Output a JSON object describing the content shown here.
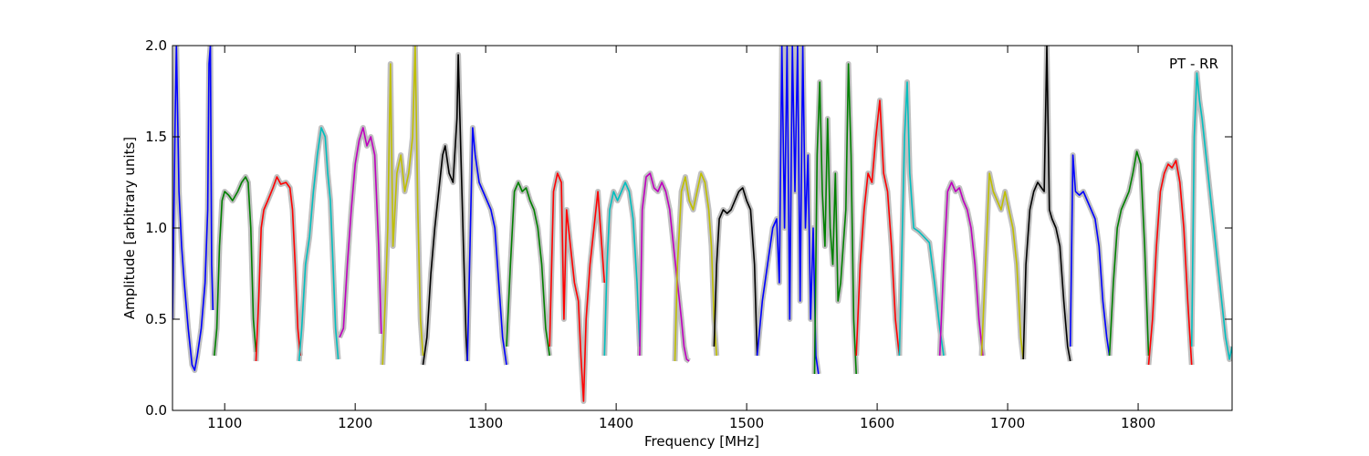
{
  "chart_data": {
    "type": "line",
    "title": "",
    "xlabel": "Frequency [MHz]",
    "ylabel": "Amplitude [arbitrary units]",
    "annotation": "PT - RR",
    "xlim": [
      1060,
      1872
    ],
    "ylim": [
      0.0,
      2.0
    ],
    "x_ticks": [
      "1100",
      "1200",
      "1300",
      "1400",
      "1500",
      "1600",
      "1700",
      "1800"
    ],
    "y_ticks": [
      "0.0",
      "0.5",
      "1.0",
      "1.5",
      "2.0"
    ],
    "grid": false,
    "legend": "none",
    "background_color": "#c0c0c0",
    "series": [
      {
        "color": "#0000ff",
        "x": [
          1060,
          1062,
          1063,
          1065,
          1067,
          1069,
          1072,
          1075,
          1077,
          1079,
          1082,
          1085,
          1087,
          1088,
          1089,
          1090,
          1091
        ],
        "y": [
          0.5,
          1.6,
          2.0,
          1.2,
          0.9,
          0.7,
          0.45,
          0.25,
          0.22,
          0.3,
          0.45,
          0.7,
          1.1,
          1.9,
          2.0,
          0.8,
          0.55
        ]
      },
      {
        "color": "#008000",
        "x": [
          1092,
          1094,
          1096,
          1098,
          1100,
          1103,
          1106,
          1110,
          1113,
          1116,
          1118,
          1120,
          1122,
          1124
        ],
        "y": [
          0.3,
          0.45,
          0.9,
          1.15,
          1.2,
          1.18,
          1.15,
          1.2,
          1.25,
          1.28,
          1.25,
          1.0,
          0.5,
          0.32
        ]
      },
      {
        "color": "#ff0000",
        "x": [
          1124,
          1126,
          1128,
          1130,
          1133,
          1137,
          1140,
          1143,
          1147,
          1150,
          1152,
          1154,
          1156,
          1158
        ],
        "y": [
          0.27,
          0.6,
          1.0,
          1.1,
          1.15,
          1.22,
          1.28,
          1.24,
          1.25,
          1.22,
          1.1,
          0.8,
          0.45,
          0.3
        ]
      },
      {
        "color": "#00bfbf",
        "x": [
          1157,
          1159,
          1162,
          1165,
          1168,
          1171,
          1174,
          1177,
          1179,
          1181,
          1183,
          1185,
          1187
        ],
        "y": [
          0.27,
          0.45,
          0.8,
          0.95,
          1.2,
          1.4,
          1.55,
          1.5,
          1.3,
          1.15,
          0.8,
          0.45,
          0.28
        ]
      },
      {
        "color": "#bf00bf",
        "x": [
          1188,
          1191,
          1194,
          1197,
          1200,
          1203,
          1206,
          1209,
          1212,
          1215,
          1218,
          1220
        ],
        "y": [
          0.4,
          0.45,
          0.8,
          1.1,
          1.35,
          1.48,
          1.55,
          1.45,
          1.5,
          1.4,
          0.9,
          0.42
        ]
      },
      {
        "color": "#bfbf00",
        "x": [
          1221,
          1223,
          1225,
          1227,
          1229,
          1232,
          1235,
          1238,
          1241,
          1244,
          1246,
          1248,
          1250,
          1252
        ],
        "y": [
          0.25,
          0.6,
          1.0,
          1.9,
          0.9,
          1.3,
          1.4,
          1.2,
          1.3,
          1.5,
          2.0,
          1.1,
          0.5,
          0.3
        ]
      },
      {
        "color": "#000000",
        "x": [
          1252,
          1255,
          1258,
          1261,
          1264,
          1267,
          1269,
          1272,
          1275,
          1278,
          1279,
          1281,
          1283,
          1285,
          1286
        ],
        "y": [
          0.25,
          0.4,
          0.75,
          1.0,
          1.2,
          1.4,
          1.45,
          1.3,
          1.25,
          1.6,
          1.95,
          1.4,
          0.9,
          0.4,
          0.27
        ]
      },
      {
        "color": "#0000ff",
        "x": [
          1286,
          1288,
          1290,
          1292,
          1295,
          1298,
          1301,
          1304,
          1307,
          1310,
          1313,
          1316
        ],
        "y": [
          0.27,
          0.9,
          1.55,
          1.4,
          1.25,
          1.2,
          1.15,
          1.1,
          1.0,
          0.7,
          0.4,
          0.25
        ]
      },
      {
        "color": "#008000",
        "x": [
          1316,
          1319,
          1322,
          1325,
          1328,
          1331,
          1334,
          1337,
          1340,
          1343,
          1346,
          1349
        ],
        "y": [
          0.35,
          0.8,
          1.2,
          1.25,
          1.2,
          1.22,
          1.15,
          1.1,
          1.0,
          0.8,
          0.45,
          0.3
        ]
      },
      {
        "color": "#ff0000",
        "x": [
          1349,
          1352,
          1355,
          1358,
          1360,
          1362,
          1365,
          1368,
          1371,
          1373,
          1375,
          1377,
          1380,
          1383,
          1386,
          1389,
          1391
        ],
        "y": [
          0.35,
          1.2,
          1.3,
          1.25,
          0.5,
          1.1,
          0.9,
          0.7,
          0.6,
          0.3,
          0.05,
          0.5,
          0.8,
          1.0,
          1.2,
          0.9,
          0.7
        ]
      },
      {
        "color": "#00bfbf",
        "x": [
          1391,
          1393,
          1395,
          1398,
          1401,
          1404,
          1407,
          1410,
          1413,
          1416,
          1418
        ],
        "y": [
          0.3,
          0.8,
          1.1,
          1.2,
          1.15,
          1.2,
          1.25,
          1.2,
          1.05,
          0.7,
          0.35
        ]
      },
      {
        "color": "#bf00bf",
        "x": [
          1418,
          1420,
          1423,
          1426,
          1429,
          1432,
          1435,
          1438,
          1441,
          1444,
          1447,
          1450,
          1452,
          1454,
          1456
        ],
        "y": [
          0.3,
          1.1,
          1.28,
          1.3,
          1.22,
          1.2,
          1.25,
          1.2,
          1.1,
          0.9,
          0.7,
          0.5,
          0.35,
          0.28,
          0.27
        ]
      },
      {
        "color": "#bfbf00",
        "x": [
          1445,
          1447,
          1450,
          1453,
          1456,
          1459,
          1462,
          1465,
          1468,
          1471,
          1473,
          1475,
          1477
        ],
        "y": [
          0.27,
          0.8,
          1.2,
          1.28,
          1.15,
          1.1,
          1.2,
          1.3,
          1.25,
          1.1,
          0.9,
          0.5,
          0.3
        ]
      },
      {
        "color": "#000000",
        "x": [
          1475,
          1477,
          1479,
          1482,
          1485,
          1488,
          1491,
          1494,
          1497,
          1500,
          1503,
          1506,
          1508
        ],
        "y": [
          0.35,
          0.8,
          1.05,
          1.1,
          1.08,
          1.1,
          1.15,
          1.2,
          1.22,
          1.15,
          1.1,
          0.8,
          0.3
        ]
      },
      {
        "color": "#0000ff",
        "x": [
          1508,
          1512,
          1516,
          1520,
          1523,
          1525,
          1527,
          1529,
          1531,
          1533,
          1535,
          1537,
          1539,
          1541,
          1543,
          1545,
          1547,
          1549,
          1551,
          1553,
          1555
        ],
        "y": [
          0.3,
          0.6,
          0.8,
          1.0,
          1.05,
          0.7,
          2.0,
          1.0,
          2.0,
          0.5,
          2.0,
          1.2,
          2.0,
          0.6,
          2.0,
          1.0,
          1.4,
          0.5,
          1.0,
          0.3,
          0.2
        ]
      },
      {
        "color": "#008000",
        "x": [
          1552,
          1554,
          1556,
          1558,
          1560,
          1562,
          1564,
          1566,
          1568,
          1570,
          1572,
          1574,
          1576,
          1578,
          1580,
          1582,
          1584
        ],
        "y": [
          0.2,
          1.4,
          1.8,
          1.2,
          0.9,
          1.6,
          1.0,
          0.8,
          1.3,
          0.6,
          0.7,
          0.9,
          1.1,
          1.9,
          1.4,
          0.5,
          0.2
        ]
      },
      {
        "color": "#ff0000",
        "x": [
          1584,
          1587,
          1590,
          1593,
          1596,
          1599,
          1602,
          1605,
          1608,
          1611,
          1614,
          1617
        ],
        "y": [
          0.3,
          0.8,
          1.1,
          1.3,
          1.25,
          1.5,
          1.7,
          1.3,
          1.2,
          0.9,
          0.5,
          0.3
        ]
      },
      {
        "color": "#00bfbf",
        "x": [
          1617,
          1619,
          1621,
          1623,
          1625,
          1628,
          1632,
          1636,
          1640,
          1644,
          1648,
          1651
        ],
        "y": [
          0.3,
          0.9,
          1.5,
          1.8,
          1.3,
          1.0,
          0.98,
          0.95,
          0.92,
          0.7,
          0.45,
          0.3
        ]
      },
      {
        "color": "#bf00bf",
        "x": [
          1648,
          1651,
          1654,
          1657,
          1660,
          1663,
          1666,
          1669,
          1672,
          1675,
          1678,
          1681
        ],
        "y": [
          0.3,
          0.8,
          1.2,
          1.25,
          1.2,
          1.22,
          1.15,
          1.1,
          1.0,
          0.8,
          0.5,
          0.3
        ]
      },
      {
        "color": "#bfbf00",
        "x": [
          1680,
          1683,
          1686,
          1689,
          1692,
          1695,
          1698,
          1701,
          1704,
          1707,
          1710,
          1712
        ],
        "y": [
          0.3,
          0.8,
          1.3,
          1.2,
          1.15,
          1.1,
          1.2,
          1.1,
          1.0,
          0.8,
          0.4,
          0.28
        ]
      },
      {
        "color": "#000000",
        "x": [
          1712,
          1714,
          1717,
          1720,
          1723,
          1726,
          1728,
          1730,
          1732,
          1734,
          1737,
          1740,
          1743,
          1746,
          1748
        ],
        "y": [
          0.28,
          0.8,
          1.1,
          1.2,
          1.25,
          1.22,
          1.2,
          2.0,
          1.1,
          1.05,
          1.0,
          0.9,
          0.6,
          0.35,
          0.27
        ]
      },
      {
        "color": "#0000ff",
        "x": [
          1748,
          1750,
          1752,
          1755,
          1758,
          1761,
          1764,
          1767,
          1770,
          1773,
          1776,
          1778
        ],
        "y": [
          0.35,
          1.4,
          1.2,
          1.18,
          1.2,
          1.15,
          1.1,
          1.05,
          0.9,
          0.6,
          0.4,
          0.3
        ]
      },
      {
        "color": "#008000",
        "x": [
          1778,
          1781,
          1784,
          1787,
          1790,
          1793,
          1796,
          1799,
          1802,
          1805,
          1808
        ],
        "y": [
          0.3,
          0.7,
          1.0,
          1.1,
          1.15,
          1.2,
          1.3,
          1.42,
          1.35,
          0.9,
          0.3
        ]
      },
      {
        "color": "#ff0000",
        "x": [
          1808,
          1811,
          1814,
          1817,
          1820,
          1823,
          1826,
          1829,
          1832,
          1835,
          1838,
          1841
        ],
        "y": [
          0.25,
          0.5,
          0.9,
          1.2,
          1.3,
          1.35,
          1.33,
          1.37,
          1.25,
          1.0,
          0.6,
          0.25
        ]
      },
      {
        "color": "#00bfbf",
        "x": [
          1841,
          1843,
          1845,
          1847,
          1849,
          1852,
          1855,
          1858,
          1861,
          1864,
          1867,
          1870,
          1872
        ],
        "y": [
          0.35,
          1.5,
          1.85,
          1.7,
          1.6,
          1.4,
          1.2,
          1.0,
          0.8,
          0.6,
          0.4,
          0.28,
          0.35
        ]
      }
    ]
  }
}
